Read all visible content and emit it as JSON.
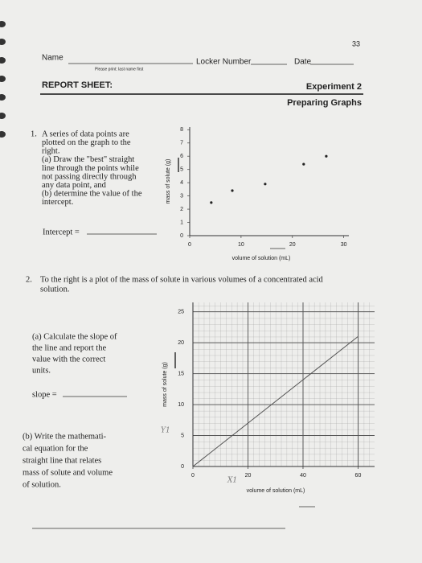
{
  "header": {
    "page_number": "33",
    "name_label": "Name",
    "name_hint": "Please print: last name first",
    "locker_label": "Locker Number",
    "date_label": "Date",
    "report": "REPORT SHEET:",
    "experiment": "Experiment 2",
    "subtitle": "Preparing Graphs"
  },
  "q1": {
    "number": "1.",
    "lines": [
      "A series of data points are",
      "plotted on the graph to the",
      "right.",
      "(a) Draw the \"best\" straight",
      "line through the points while",
      "not passing directly through",
      "any data point, and",
      "(b) determine the value of the",
      "intercept."
    ],
    "answer_label": "Intercept ="
  },
  "q2": {
    "number": "2.",
    "lines": [
      "To the right is a plot of the mass of solute in various volumes of a concentrated acid",
      "solution."
    ],
    "part_a": [
      "(a) Calculate the slope of",
      "the line and report the",
      "value with the correct",
      "units."
    ],
    "answer_label": "slope =",
    "part_b": [
      "(b) Write the mathemati-",
      "cal equation for the",
      "straight line that relates",
      "mass of solute and volume",
      "of solution."
    ]
  },
  "chart_data": [
    {
      "type": "scatter",
      "x_label": "volume of solution (mL)",
      "y_label": "mass of solute (g)",
      "x": [
        4.2,
        8.3,
        14.7,
        22.2,
        26.6
      ],
      "values": [
        2.5,
        3.4,
        3.9,
        5.4,
        6.0
      ],
      "color": "#222",
      "xlim": [
        0,
        31
      ],
      "ylim": [
        0,
        8.2
      ],
      "xticks": [
        0,
        10,
        20,
        30
      ],
      "yticks": [
        0,
        1,
        2,
        3,
        4,
        5,
        6,
        7,
        8
      ],
      "grid": false
    },
    {
      "type": "line",
      "x_label": "volume of solution (mL)",
      "y_label": "mass of solute (g)",
      "x": [
        0,
        60
      ],
      "values": [
        0,
        21
      ],
      "color": "#555",
      "xlim": [
        0,
        66
      ],
      "ylim": [
        0,
        26.5
      ],
      "xticks": [
        0,
        20,
        40,
        60
      ],
      "yticks": [
        0,
        5,
        10,
        15,
        20,
        25
      ],
      "grid": true,
      "annotations": [
        "Y1",
        "X1"
      ]
    }
  ]
}
